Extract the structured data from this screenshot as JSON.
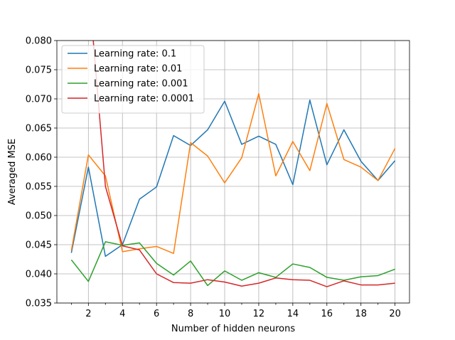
{
  "chart_data": {
    "type": "line",
    "title": "",
    "xlabel": "Number of hidden neurons",
    "ylabel": "Averaged MSE",
    "xlim": [
      0.15,
      20.85
    ],
    "ylim": [
      0.035,
      0.08
    ],
    "xticks": [
      2,
      4,
      6,
      8,
      10,
      12,
      14,
      16,
      18,
      20
    ],
    "yticks": [
      0.035,
      0.04,
      0.045,
      0.05,
      0.055,
      0.06,
      0.065,
      0.07,
      0.075,
      0.08
    ],
    "ytick_labels": [
      "0.035",
      "0.040",
      "0.045",
      "0.050",
      "0.055",
      "0.060",
      "0.065",
      "0.070",
      "0.075",
      "0.080"
    ],
    "grid": true,
    "legend_position": "top-left",
    "x": [
      1,
      2,
      3,
      4,
      5,
      6,
      7,
      8,
      9,
      10,
      11,
      12,
      13,
      14,
      15,
      16,
      17,
      18,
      19,
      20
    ],
    "series": [
      {
        "name": "Learning rate: 0.1",
        "color": "#1f77b4",
        "values": [
          0.0436,
          0.0583,
          0.043,
          0.045,
          0.0528,
          0.0549,
          0.0637,
          0.062,
          0.0647,
          0.0696,
          0.0622,
          0.0636,
          0.0622,
          0.0553,
          0.0698,
          0.0587,
          0.0647,
          0.0593,
          0.056,
          0.0594
        ]
      },
      {
        "name": "Learning rate: 0.01",
        "color": "#ff7f0e",
        "values": [
          0.044,
          0.0604,
          0.0568,
          0.0438,
          0.0443,
          0.0447,
          0.0435,
          0.0625,
          0.0602,
          0.0556,
          0.0599,
          0.0709,
          0.0568,
          0.0627,
          0.0577,
          0.0692,
          0.0596,
          0.0583,
          0.056,
          0.0615
        ]
      },
      {
        "name": "Learning rate: 0.001",
        "color": "#2ca02c",
        "values": [
          0.0424,
          0.0387,
          0.0455,
          0.0449,
          0.0453,
          0.0418,
          0.0398,
          0.0422,
          0.038,
          0.0405,
          0.0389,
          0.0402,
          0.0394,
          0.0417,
          0.0411,
          0.0394,
          0.0389,
          0.0395,
          0.0397,
          0.0408
        ]
      },
      {
        "name": "Learning rate: 0.0001",
        "color": "#d62728",
        "values": [
          null,
          0.09,
          0.055,
          0.0448,
          0.0441,
          0.04,
          0.0385,
          0.0384,
          0.039,
          0.0386,
          0.0379,
          0.0384,
          0.0393,
          0.039,
          0.0389,
          0.0378,
          0.0388,
          0.0381,
          0.0381,
          0.0384
        ]
      }
    ]
  }
}
